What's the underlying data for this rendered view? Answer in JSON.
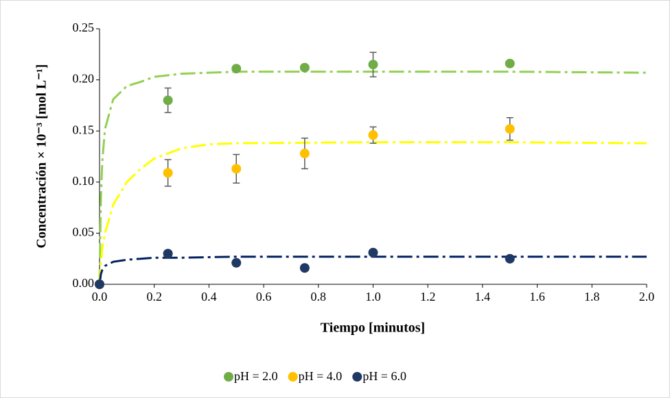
{
  "chart_data": {
    "type": "scatter",
    "xlabel": "Tiempo [minutos]",
    "ylabel": "Concentración × 10⁻³ [mol L⁻¹]",
    "xlim": [
      0,
      2.0
    ],
    "ylim": [
      0,
      0.25
    ],
    "xticks": [
      {
        "value": 0,
        "label": "0.0"
      },
      0.2,
      0.4,
      0.6,
      0.8,
      {
        "value": 1,
        "label": "1.0"
      },
      1.2,
      1.4,
      1.6,
      1.8,
      {
        "value": 2,
        "label": "2.0"
      }
    ],
    "yticks": [
      {
        "value": 0,
        "label": "0.00"
      },
      0.05,
      {
        "value": 0.1,
        "label": "0.10"
      },
      0.15,
      {
        "value": 0.2,
        "label": "0.20"
      },
      0.25
    ],
    "x": [
      0,
      0.25,
      0.5,
      0.75,
      1.0,
      1.5
    ],
    "series": [
      {
        "name": "pH = 2.0",
        "color": "#70ad47",
        "values": [
          0,
          0.18,
          0.211,
          0.212,
          0.215,
          0.216
        ],
        "errors": [
          null,
          0.012,
          0.001,
          null,
          0.012,
          null
        ],
        "fit": {
          "color": "#92d050",
          "x": [
            0,
            0.005,
            0.01,
            0.02,
            0.05,
            0.1,
            0.15,
            0.2,
            0.3,
            0.4,
            0.5,
            1.0,
            1.5,
            2.0
          ],
          "values": [
            0,
            0.084,
            0.12,
            0.152,
            0.181,
            0.194,
            0.198,
            0.203,
            0.206,
            0.207,
            0.208,
            0.208,
            0.208,
            0.207
          ]
        }
      },
      {
        "name": "pH = 4.0",
        "color": "#ffc000",
        "values": [
          0,
          0.109,
          0.113,
          0.128,
          0.146,
          0.152
        ],
        "errors": [
          null,
          0.013,
          0.014,
          0.015,
          0.008,
          0.011
        ],
        "fit": {
          "color": "#ffff00",
          "x": [
            0,
            0.005,
            0.01,
            0.02,
            0.05,
            0.1,
            0.15,
            0.2,
            0.3,
            0.4,
            0.5,
            1.0,
            1.5,
            2.0
          ],
          "values": [
            0,
            0.02,
            0.035,
            0.05,
            0.078,
            0.1,
            0.113,
            0.123,
            0.133,
            0.137,
            0.138,
            0.139,
            0.139,
            0.138
          ]
        }
      },
      {
        "name": "pH = 6.0",
        "color": "#203864",
        "values": [
          0,
          0.03,
          0.021,
          0.016,
          0.031,
          0.025
        ],
        "errors": [
          null,
          null,
          null,
          null,
          0.002,
          null
        ],
        "fit": {
          "color": "#002060",
          "x": [
            0,
            0.005,
            0.01,
            0.02,
            0.05,
            0.1,
            0.15,
            0.2,
            0.3,
            0.5,
            1.0,
            1.5,
            2.0
          ],
          "values": [
            0,
            0.01,
            0.014,
            0.018,
            0.022,
            0.024,
            0.025,
            0.026,
            0.026,
            0.027,
            0.027,
            0.027,
            0.027
          ]
        }
      }
    ]
  }
}
